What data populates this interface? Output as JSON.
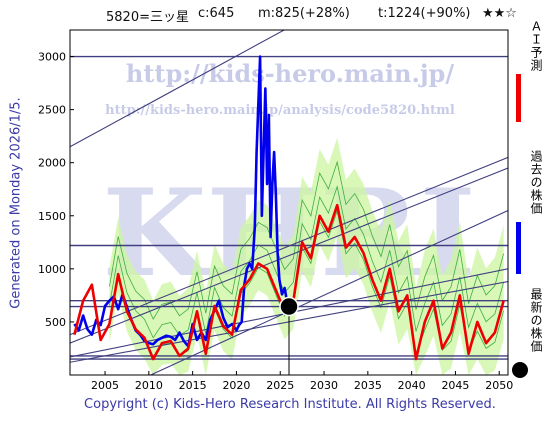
{
  "header": {
    "code_name": "5820=三ッ星",
    "current": "c:645",
    "ma": "m:825(+28%)",
    "target": "t:1224(+90%)",
    "rating": "★★☆"
  },
  "sidebar": {
    "generated": "Generated on Monday 2026/1/5."
  },
  "watermark": {
    "site_url": "http://kids-hero.main.jp/",
    "page_url": "http://kids-hero.main.jp/analysis/code5820.html",
    "big_text": "KHRI"
  },
  "legend": {
    "items": [
      {
        "label": "ＡＩ予測",
        "color": "#ee0000",
        "kind": "line"
      },
      {
        "label": "過去の株価",
        "color": "#0000ee",
        "kind": "line"
      },
      {
        "label": "最新の株価",
        "color": "#000000",
        "kind": "dot"
      }
    ]
  },
  "footer": {
    "copyright": "Copyright (c) Kids-Hero Research Institute. All Rights Reserved."
  },
  "colors": {
    "past_price": "#0000ee",
    "ai_forecast": "#ee0000",
    "band_fill": "#ccf5a0",
    "band_lines": "#3fae3f",
    "trend_lines": "#404080",
    "horizontal_lines": "#404080",
    "latest_dot": "#000000"
  },
  "chart_data": {
    "type": "line",
    "xlim": [
      2001,
      2051
    ],
    "ylim": [
      0,
      3250
    ],
    "x_ticks": [
      2005,
      2010,
      2015,
      2020,
      2025,
      2030,
      2035,
      2040,
      2045,
      2050
    ],
    "y_ticks": [
      500,
      1000,
      1500,
      2000,
      2500,
      3000
    ],
    "grid": true,
    "horizontal_levels": [
      150,
      180,
      645,
      700,
      1220,
      3000
    ],
    "trend_lines": [
      {
        "x": [
          2001,
          2051
        ],
        "y": [
          2150,
          4400
        ]
      },
      {
        "x": [
          2001,
          2051
        ],
        "y": [
          380,
          2050
        ]
      },
      {
        "x": [
          2001,
          2051
        ],
        "y": [
          300,
          1950
        ]
      },
      {
        "x": [
          2001,
          2051
        ],
        "y": [
          170,
          1000
        ]
      },
      {
        "x": [
          2001,
          2051
        ],
        "y": [
          120,
          880
        ]
      },
      {
        "x": [
          2001,
          2051
        ],
        "y": [
          -350,
          1550
        ]
      }
    ],
    "latest": {
      "x": 2026.0,
      "y": 645
    },
    "series": [
      {
        "name": "過去の株価",
        "x": [
          2001.5,
          2002,
          2002.5,
          2003,
          2003.5,
          2004,
          2004.5,
          2005,
          2005.5,
          2006,
          2006.5,
          2007,
          2007.5,
          2008,
          2008.5,
          2009,
          2009.5,
          2010,
          2010.5,
          2011,
          2011.5,
          2012,
          2012.5,
          2013,
          2013.5,
          2014,
          2014.5,
          2015,
          2015.5,
          2016,
          2016.5,
          2017,
          2017.5,
          2018,
          2018.5,
          2019,
          2019.5,
          2020,
          2020.3,
          2020.6,
          2020.9,
          2021.2,
          2021.5,
          2021.8,
          2022.1,
          2022.3,
          2022.5,
          2022.7,
          2022.9,
          2023.1,
          2023.3,
          2023.5,
          2023.7,
          2023.9,
          2024.1,
          2024.3,
          2024.5,
          2024.7,
          2024.9,
          2025.2,
          2025.5,
          2025.8,
          2026.0
        ],
        "y": [
          480,
          420,
          560,
          430,
          380,
          520,
          470,
          650,
          700,
          740,
          620,
          760,
          640,
          520,
          420,
          380,
          320,
          300,
          290,
          330,
          350,
          370,
          360,
          330,
          400,
          320,
          270,
          480,
          330,
          400,
          330,
          520,
          610,
          700,
          540,
          450,
          480,
          420,
          470,
          500,
          850,
          1000,
          1050,
          1000,
          1400,
          2100,
          2550,
          3000,
          1500,
          2100,
          2700,
          1800,
          2450,
          1300,
          1800,
          2100,
          1700,
          1150,
          900,
          760,
          820,
          680,
          645
        ]
      },
      {
        "name": "ＡＩ予測",
        "x": [
          2001.5,
          2002.5,
          2003.5,
          2004.5,
          2005.5,
          2006.5,
          2007.5,
          2008.5,
          2009.5,
          2010.5,
          2011.5,
          2012.5,
          2013.5,
          2014.5,
          2015.5,
          2016.5,
          2017.5,
          2018.5,
          2019.5,
          2020.5,
          2021.5,
          2022.5,
          2023.5,
          2024.5,
          2025.5,
          2026.5,
          2027.5,
          2028.5,
          2029.5,
          2030.5,
          2031.5,
          2032.5,
          2033.5,
          2034.5,
          2035.5,
          2036.5,
          2037.5,
          2038.5,
          2039.5,
          2040.5,
          2041.5,
          2042.5,
          2043.5,
          2044.5,
          2045.5,
          2046.5,
          2047.5,
          2048.5,
          2049.5,
          2050.5
        ],
        "y": [
          380,
          700,
          850,
          330,
          480,
          950,
          600,
          430,
          350,
          150,
          300,
          320,
          180,
          250,
          600,
          200,
          650,
          460,
          380,
          800,
          900,
          1050,
          1000,
          800,
          600,
          700,
          1250,
          1100,
          1500,
          1350,
          1600,
          1200,
          1300,
          1150,
          900,
          700,
          1000,
          600,
          750,
          150,
          500,
          700,
          250,
          400,
          750,
          200,
          500,
          300,
          400,
          700
        ]
      }
    ]
  }
}
